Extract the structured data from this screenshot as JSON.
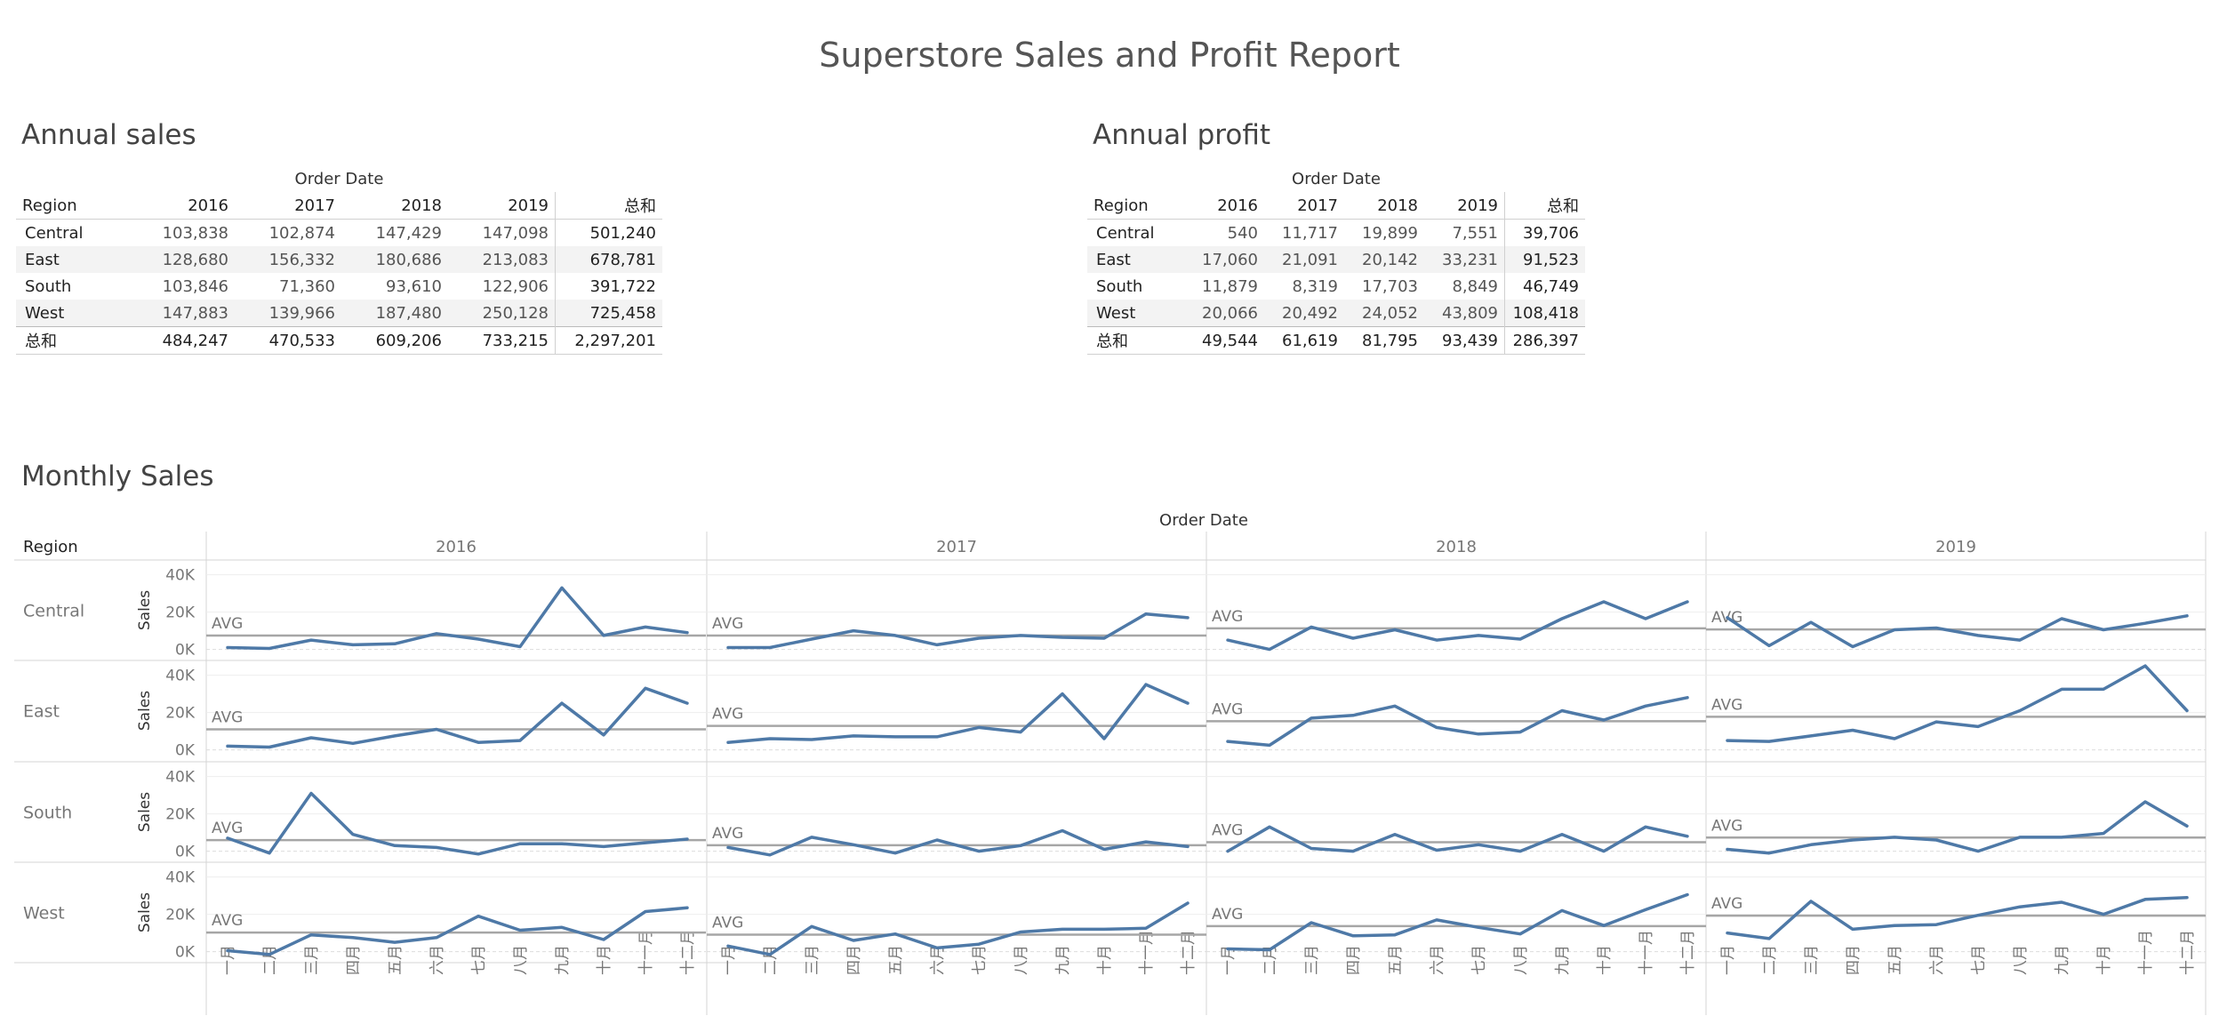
{
  "report": {
    "title": "Superstore Sales and Profit Report"
  },
  "annual_sales": {
    "title": "Annual sales",
    "column_group": "Order Date",
    "row_header": "Region",
    "years": [
      "2016",
      "2017",
      "2018",
      "2019"
    ],
    "total_label": "总和",
    "rows": [
      {
        "region": "Central",
        "values": [
          "103,838",
          "102,874",
          "147,429",
          "147,098"
        ],
        "total": "501,240"
      },
      {
        "region": "East",
        "values": [
          "128,680",
          "156,332",
          "180,686",
          "213,083"
        ],
        "total": "678,781"
      },
      {
        "region": "South",
        "values": [
          "103,846",
          "71,360",
          "93,610",
          "122,906"
        ],
        "total": "391,722"
      },
      {
        "region": "West",
        "values": [
          "147,883",
          "139,966",
          "187,480",
          "250,128"
        ],
        "total": "725,458"
      }
    ],
    "grand_total": {
      "label": "总和",
      "values": [
        "484,247",
        "470,533",
        "609,206",
        "733,215"
      ],
      "total": "2,297,201"
    }
  },
  "annual_profit": {
    "title": "Annual profit",
    "column_group": "Order Date",
    "row_header": "Region",
    "years": [
      "2016",
      "2017",
      "2018",
      "2019"
    ],
    "total_label": "总和",
    "rows": [
      {
        "region": "Central",
        "values": [
          "540",
          "11,717",
          "19,899",
          "7,551"
        ],
        "total": "39,706"
      },
      {
        "region": "East",
        "values": [
          "17,060",
          "21,091",
          "20,142",
          "33,231"
        ],
        "total": "91,523"
      },
      {
        "region": "South",
        "values": [
          "11,879",
          "8,319",
          "17,703",
          "8,849"
        ],
        "total": "46,749"
      },
      {
        "region": "West",
        "values": [
          "20,066",
          "20,492",
          "24,052",
          "43,809"
        ],
        "total": "108,418"
      }
    ],
    "grand_total": {
      "label": "总和",
      "values": [
        "49,544",
        "61,619",
        "81,795",
        "93,439"
      ],
      "total": "286,397"
    }
  },
  "monthly_sales": {
    "title": "Monthly Sales",
    "column_group": "Order Date",
    "row_header": "Region",
    "ref_line_label": "AVG",
    "line_color": "#4e79a7",
    "ref_line_color": "#a6a6a6"
  },
  "chart_data": {
    "type": "line",
    "ylabel": "Sales",
    "yticks": [
      "0K",
      "20K",
      "40K"
    ],
    "ylim": [
      -4000,
      46000
    ],
    "years": [
      "2016",
      "2017",
      "2018",
      "2019"
    ],
    "months": [
      "一月",
      "二月",
      "三月",
      "四月",
      "五月",
      "六月",
      "七月",
      "八月",
      "九月",
      "十月",
      "十一月",
      "十二月"
    ],
    "reference_line": "AVG",
    "regions": [
      {
        "name": "Central",
        "series": [
          [
            1000,
            500,
            5000,
            2500,
            3000,
            8500,
            5500,
            1500,
            33000,
            7500,
            12000,
            9000
          ],
          [
            1000,
            1000,
            5500,
            10000,
            7500,
            2500,
            6000,
            7500,
            6500,
            6000,
            19000,
            17000
          ],
          [
            5000,
            0,
            12000,
            6000,
            10500,
            5000,
            7500,
            5500,
            16500,
            25500,
            16500,
            25500
          ],
          [
            17000,
            2000,
            14500,
            1500,
            10500,
            11500,
            7500,
            5000,
            16500,
            10500,
            14000,
            18000
          ]
        ]
      },
      {
        "name": "East",
        "series": [
          [
            2000,
            1500,
            6500,
            3500,
            7500,
            11000,
            4000,
            5000,
            25000,
            8000,
            33000,
            25000
          ],
          [
            4000,
            6000,
            5500,
            7500,
            7000,
            7000,
            12000,
            9500,
            30000,
            6000,
            35000,
            25000
          ],
          [
            4500,
            2500,
            17000,
            18500,
            23500,
            12000,
            8500,
            9500,
            21000,
            16000,
            23500,
            28000
          ],
          [
            5000,
            4500,
            7500,
            10500,
            6000,
            15000,
            12500,
            21000,
            32500,
            32500,
            45000,
            21000
          ]
        ]
      },
      {
        "name": "South",
        "series": [
          [
            7000,
            -1000,
            31000,
            9000,
            3000,
            2000,
            -1500,
            4000,
            4000,
            2500,
            4500,
            6500
          ],
          [
            2000,
            -2000,
            7500,
            3500,
            -1000,
            6000,
            0,
            3000,
            11000,
            1000,
            5000,
            2500
          ],
          [
            0,
            13000,
            1500,
            0,
            9000,
            500,
            3500,
            0,
            9000,
            0,
            13000,
            8000
          ],
          [
            1000,
            -1000,
            3500,
            6000,
            7500,
            6000,
            0,
            7500,
            7500,
            9500,
            26500,
            13500
          ]
        ]
      },
      {
        "name": "West",
        "series": [
          [
            500,
            -1500,
            9000,
            7500,
            5000,
            7500,
            19000,
            11500,
            13000,
            6500,
            21500,
            23500
          ],
          [
            3000,
            -1500,
            13500,
            6000,
            9500,
            2000,
            4000,
            10500,
            12000,
            12000,
            12500,
            26000
          ],
          [
            1500,
            1000,
            15500,
            8500,
            9000,
            17000,
            13000,
            9500,
            22000,
            14000,
            22500,
            30500
          ],
          [
            10000,
            7000,
            27000,
            12000,
            14000,
            14500,
            19500,
            24000,
            26500,
            20000,
            28000,
            29000
          ]
        ]
      }
    ]
  }
}
